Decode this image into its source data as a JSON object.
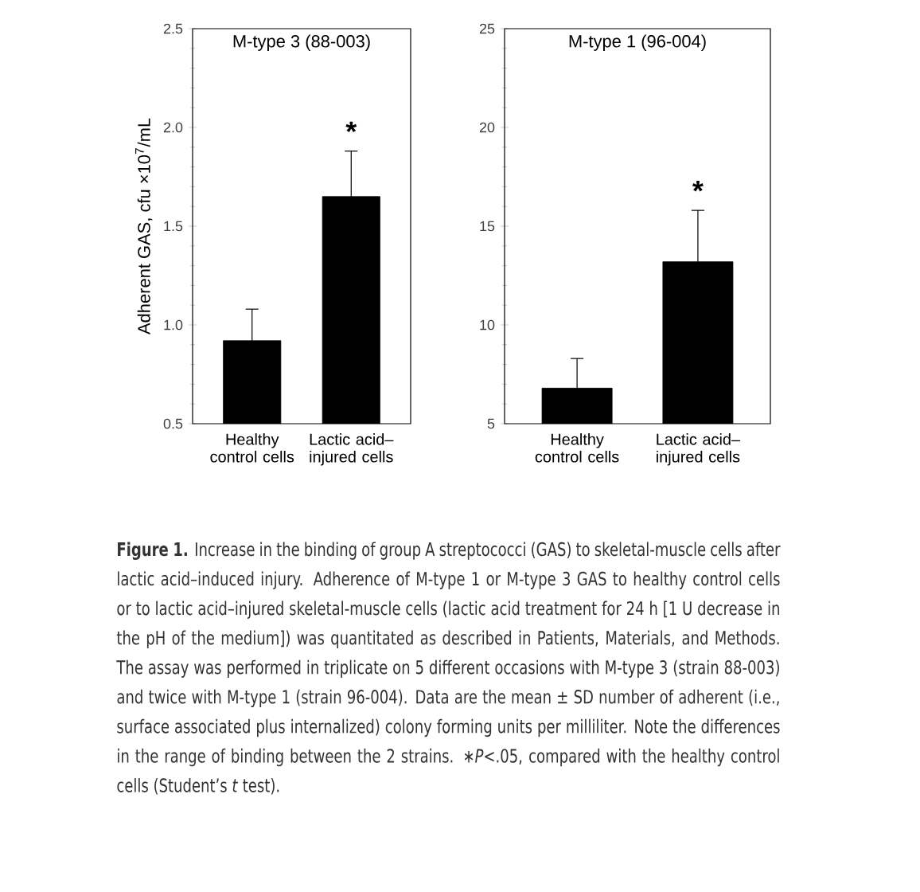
{
  "chart_data": [
    {
      "type": "bar",
      "title": "M-type 3 (88-003)",
      "ylabel": "Adherent GAS, cfu ×10$^{7}$/mL",
      "categories": [
        "Healthy control cells",
        "Lactic acid–injured cells"
      ],
      "values": [
        0.92,
        1.65
      ],
      "color": "#000000",
      "errors": [
        [
          0.92,
          1.08
        ],
        [
          1.65,
          1.88
        ]
      ],
      "ylim": [
        0.5,
        2.5
      ],
      "yticks": [
        {
          "value": 0.5,
          "label": "0.5"
        },
        {
          "value": 1.0,
          "label": "1.0"
        },
        {
          "value": 1.5,
          "label": "1.5"
        },
        {
          "value": 2.0,
          "label": "2.0"
        },
        {
          "value": 2.5,
          "label": "2.5"
        }
      ],
      "grid": false,
      "annotations": [
        "*",
        "**Figure 1.** Increase in the binding of group A streptococci (GAS) to skeletal-muscle cells after lactic acid–induced injury. Adherence of M-type 1 or M-type 3 GAS to healthy control cells or to lactic acid–injured skeletal-muscle cells (lactic acid treatment for 24 h [1 U decrease in the pH of the medium]) was quantitated as described in Patients, Materials, and Methods. The assay was performed in triplicate on 5 different occasions with M-type 3 (strain 88-003) and twice with M-type 1 (strain 96-004). Data are the mean ± SD number of adherent (i.e., surface associated plus internalized) colony forming units per milliliter. Note the differences in the range of binding between the 2 strains. ∗*P*<.05, compared with the healthy control cells (Student’s *t* test)."
      ]
    },
    {
      "type": "bar",
      "title": "M-type 1 (96-004)",
      "categories": [
        "Healthy control cells",
        "Lactic acid–injured cells"
      ],
      "values": [
        6.8,
        13.2
      ],
      "color": "#000000",
      "errors": [
        [
          6.8,
          8.3
        ],
        [
          13.2,
          15.8
        ]
      ],
      "ylim": [
        5,
        25
      ],
      "yticks": [
        5,
        10,
        15,
        20,
        25
      ],
      "grid": false,
      "annotations": [
        "*"
      ]
    }
  ]
}
